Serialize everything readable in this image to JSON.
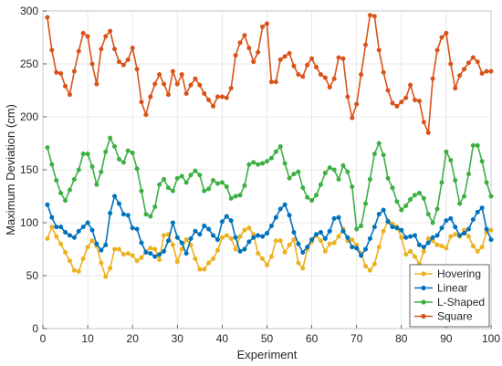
{
  "chart_data": {
    "type": "line",
    "title": "",
    "xlabel": "Experiment",
    "ylabel": "Maximum Deviation (cm)",
    "xlim": [
      0,
      100
    ],
    "ylim": [
      0,
      300
    ],
    "xticks": [
      0,
      10,
      20,
      30,
      40,
      50,
      60,
      70,
      80,
      90,
      100
    ],
    "yticks": [
      0,
      50,
      100,
      150,
      200,
      250,
      300
    ],
    "grid": true,
    "legend": "bottom-right",
    "x": [
      1,
      2,
      3,
      4,
      5,
      6,
      7,
      8,
      9,
      10,
      11,
      12,
      13,
      14,
      15,
      16,
      17,
      18,
      19,
      20,
      21,
      22,
      23,
      24,
      25,
      26,
      27,
      28,
      29,
      30,
      31,
      32,
      33,
      34,
      35,
      36,
      37,
      38,
      39,
      40,
      41,
      42,
      43,
      44,
      45,
      46,
      47,
      48,
      49,
      50,
      51,
      52,
      53,
      54,
      55,
      56,
      57,
      58,
      59,
      60,
      61,
      62,
      63,
      64,
      65,
      66,
      67,
      68,
      69,
      70,
      71,
      72,
      73,
      74,
      75,
      76,
      77,
      78,
      79,
      80,
      81,
      82,
      83,
      84,
      85,
      86,
      87,
      88,
      89,
      90,
      91,
      92,
      93,
      94,
      95,
      96,
      97,
      98,
      99,
      100
    ],
    "series": [
      {
        "name": "Hovering",
        "color": "#EDB120",
        "values": [
          85,
          96,
          87,
          80,
          72,
          64,
          55,
          54,
          66,
          77,
          83,
          78,
          62,
          49,
          57,
          75,
          75,
          70,
          71,
          69,
          64,
          67,
          73,
          76,
          75,
          65,
          88,
          89,
          79,
          63,
          75,
          84,
          79,
          66,
          56,
          56,
          62,
          66,
          74,
          86,
          88,
          85,
          75,
          87,
          93,
          95,
          89,
          71,
          66,
          60,
          68,
          83,
          83,
          72,
          79,
          84,
          62,
          57,
          75,
          82,
          88,
          83,
          73,
          80,
          81,
          87,
          94,
          83,
          84,
          79,
          71,
          59,
          55,
          61,
          77,
          92,
          102,
          99,
          96,
          86,
          70,
          73,
          68,
          61,
          73,
          85,
          83,
          79,
          78,
          76,
          87,
          89,
          87,
          93,
          87,
          78,
          73,
          77,
          91,
          93
        ]
      },
      {
        "name": "Linear",
        "color": "#0072BD",
        "values": [
          117,
          105,
          96,
          96,
          91,
          88,
          86,
          92,
          96,
          100,
          93,
          80,
          74,
          79,
          109,
          125,
          118,
          108,
          107,
          95,
          94,
          81,
          72,
          71,
          68,
          70,
          73,
          83,
          100,
          86,
          81,
          71,
          85,
          92,
          89,
          97,
          94,
          88,
          84,
          101,
          106,
          102,
          86,
          73,
          75,
          82,
          86,
          88,
          87,
          90,
          97,
          105,
          113,
          117,
          107,
          91,
          80,
          72,
          77,
          84,
          89,
          91,
          85,
          92,
          104,
          105,
          92,
          86,
          77,
          76,
          69,
          75,
          85,
          96,
          108,
          112,
          101,
          96,
          95,
          93,
          86,
          87,
          88,
          79,
          77,
          81,
          86,
          88,
          95,
          102,
          104,
          96,
          88,
          90,
          94,
          103,
          110,
          114,
          94,
          84
        ]
      },
      {
        "name": "L-Shaped",
        "color": "#3CB043",
        "values": [
          171,
          155,
          140,
          128,
          121,
          131,
          141,
          150,
          165,
          165,
          153,
          136,
          148,
          167,
          180,
          172,
          160,
          157,
          168,
          166,
          151,
          130,
          108,
          106,
          115,
          136,
          141,
          133,
          130,
          142,
          144,
          138,
          145,
          149,
          145,
          130,
          132,
          140,
          137,
          138,
          134,
          123,
          125,
          126,
          135,
          155,
          157,
          155,
          156,
          158,
          161,
          167,
          172,
          156,
          142,
          146,
          148,
          133,
          124,
          121,
          126,
          136,
          147,
          152,
          150,
          141,
          154,
          148,
          134,
          94,
          97,
          118,
          141,
          165,
          175,
          164,
          142,
          133,
          120,
          112,
          116,
          122,
          126,
          128,
          123,
          108,
          100,
          113,
          138,
          167,
          159,
          140,
          118,
          125,
          146,
          173,
          173,
          158,
          138,
          125
        ]
      },
      {
        "name": "Square",
        "color": "#D95319",
        "values": [
          294,
          263,
          242,
          241,
          229,
          221,
          243,
          262,
          279,
          276,
          250,
          231,
          264,
          276,
          281,
          264,
          252,
          249,
          254,
          265,
          245,
          214,
          202,
          219,
          231,
          240,
          231,
          221,
          243,
          231,
          240,
          222,
          230,
          236,
          230,
          222,
          216,
          210,
          219,
          219,
          218,
          227,
          258,
          270,
          277,
          265,
          252,
          261,
          285,
          288,
          233,
          233,
          254,
          257,
          260,
          248,
          240,
          238,
          249,
          255,
          247,
          240,
          237,
          228,
          236,
          256,
          255,
          219,
          199,
          212,
          240,
          268,
          296,
          295,
          263,
          242,
          225,
          213,
          210,
          214,
          218,
          230,
          216,
          215,
          195,
          185,
          236,
          263,
          275,
          279,
          250,
          227,
          239,
          245,
          251,
          256,
          252,
          241,
          243,
          243
        ]
      }
    ]
  }
}
